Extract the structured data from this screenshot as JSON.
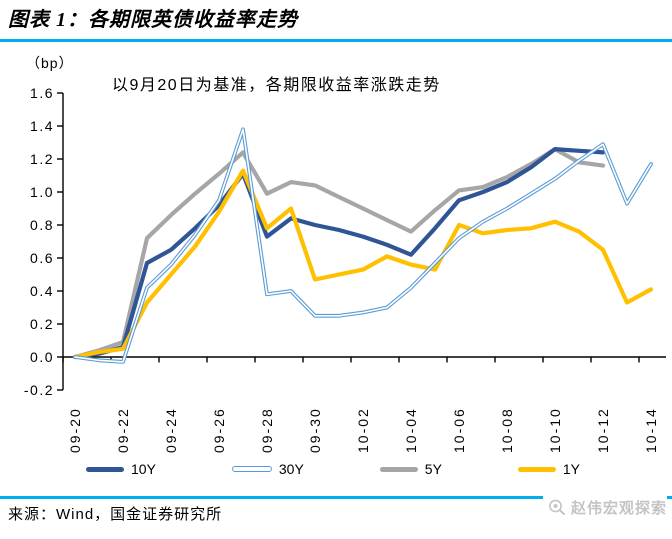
{
  "header": {
    "title": "图表 1：各期限英债收益率走势"
  },
  "chart_data": {
    "type": "line",
    "title": "以9月20日为基准，各期限收益率涨跌走势",
    "unit_label": "（bp）",
    "ylabel": "",
    "xlabel": "",
    "ylim": [
      -0.2,
      1.6
    ],
    "ytick_step": 0.2,
    "grid": false,
    "legend_position": "bottom",
    "x_label_every": 2,
    "x": [
      "09-20",
      "09-21",
      "09-22",
      "09-23",
      "09-24",
      "09-25",
      "09-26",
      "09-27",
      "09-28",
      "09-29",
      "09-30",
      "10-01",
      "10-02",
      "10-03",
      "10-04",
      "10-05",
      "10-06",
      "10-07",
      "10-08",
      "10-09",
      "10-10",
      "10-11",
      "10-12",
      "10-13",
      "10-14"
    ],
    "series": [
      {
        "name": "10Y",
        "color": "#2F5597",
        "style": "solid",
        "z": 2,
        "values": [
          0,
          0.02,
          0.06,
          0.57,
          0.65,
          0.78,
          0.92,
          1.11,
          0.73,
          0.84,
          0.8,
          0.77,
          0.73,
          0.68,
          0.62,
          0.78,
          0.95,
          1.0,
          1.06,
          1.15,
          1.26,
          1.25,
          1.24,
          null,
          null
        ]
      },
      {
        "name": "30Y",
        "color": "#5B9BD5",
        "style": "outlined",
        "z": 4,
        "values": [
          0,
          -0.02,
          -0.03,
          0.42,
          0.56,
          0.74,
          0.95,
          1.38,
          0.38,
          0.4,
          0.25,
          0.25,
          0.27,
          0.3,
          0.42,
          0.57,
          0.72,
          0.82,
          0.9,
          0.99,
          1.08,
          1.19,
          1.29,
          0.93,
          1.17
        ]
      },
      {
        "name": "5Y",
        "color": "#A6A6A6",
        "style": "solid",
        "z": 1,
        "values": [
          0,
          0.04,
          0.09,
          0.72,
          0.86,
          0.99,
          1.11,
          1.24,
          0.99,
          1.06,
          1.04,
          0.97,
          0.9,
          0.83,
          0.76,
          0.89,
          1.01,
          1.03,
          1.09,
          1.17,
          1.26,
          1.18,
          1.16,
          null,
          null
        ]
      },
      {
        "name": "1Y",
        "color": "#FFC000",
        "style": "solid",
        "z": 3,
        "values": [
          0,
          0.03,
          0.05,
          0.33,
          0.5,
          0.67,
          0.88,
          1.13,
          0.78,
          0.9,
          0.47,
          0.5,
          0.53,
          0.61,
          0.56,
          0.53,
          0.8,
          0.75,
          0.77,
          0.78,
          0.82,
          0.76,
          0.65,
          0.33,
          0.41
        ]
      }
    ]
  },
  "footer": {
    "source": "来源：Wind，国金证券研究所",
    "watermark": "赵伟宏观探索"
  },
  "theme": {
    "rule_color": "#00AEEF",
    "axis_color": "#000000",
    "watermark_color": "#C4C4C4"
  }
}
